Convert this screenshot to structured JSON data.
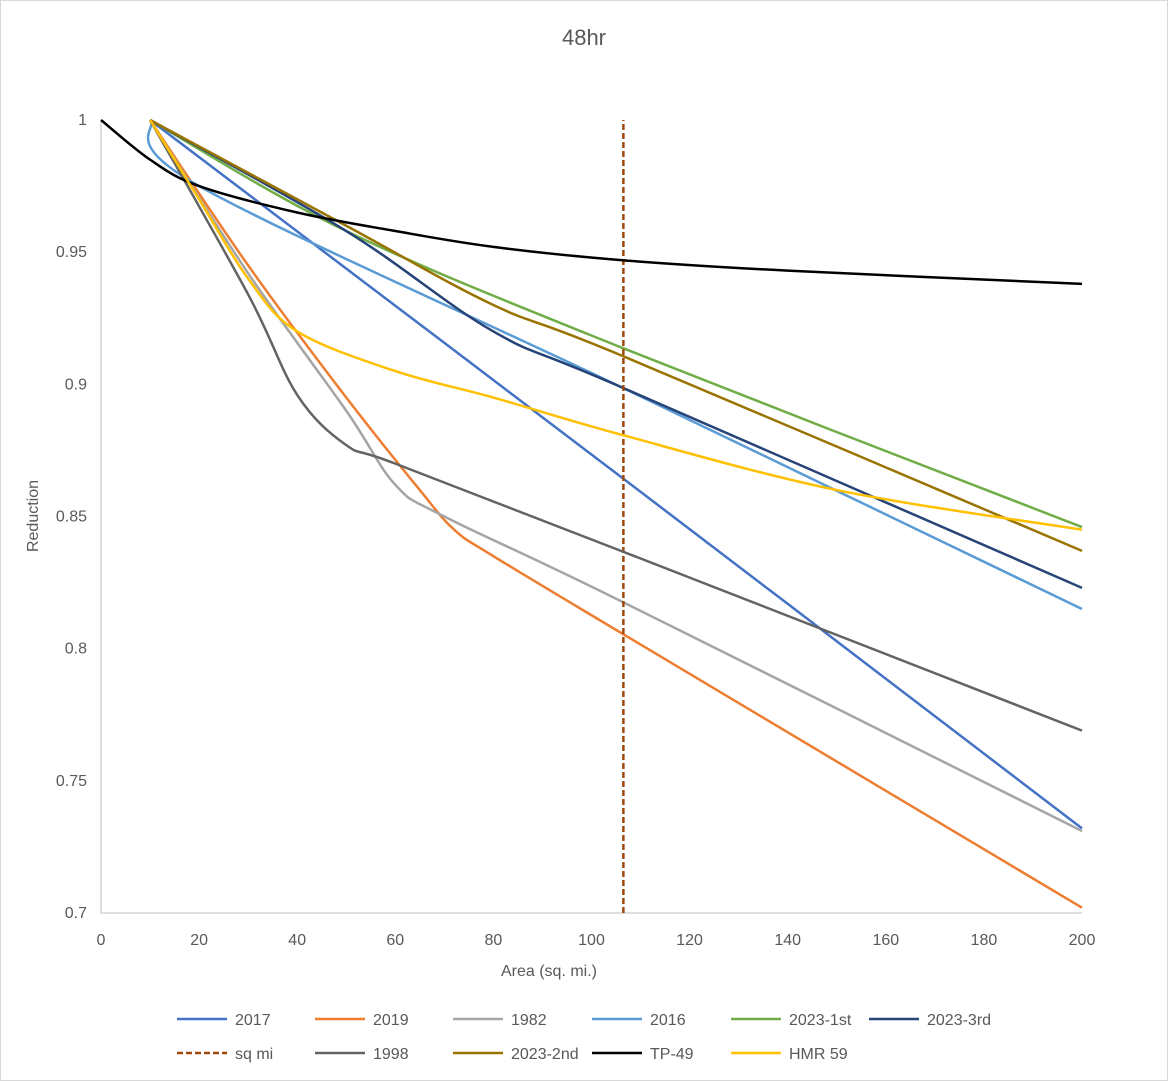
{
  "chart_data": {
    "type": "line",
    "title": "48hr",
    "xlabel": "Area (sq. mi.)",
    "ylabel": "Reduction",
    "xlim": [
      0,
      200
    ],
    "ylim": [
      0.7,
      1
    ],
    "xticks": [
      0,
      20,
      40,
      60,
      80,
      100,
      120,
      140,
      160,
      180,
      200
    ],
    "yticks": [
      0.7,
      0.75,
      0.8,
      0.85,
      0.9,
      0.95,
      1
    ],
    "grid": false,
    "legend": "bottom",
    "series": [
      {
        "name": "2017",
        "color": "#4472C4",
        "dash": false,
        "points": [
          [
            10,
            1
          ],
          [
            106,
            0.865
          ],
          [
            200,
            0.732
          ]
        ]
      },
      {
        "name": "2019",
        "color": "#ED7D31",
        "dash": false,
        "points": [
          [
            10,
            1
          ],
          [
            30,
            0.945
          ],
          [
            50,
            0.895
          ],
          [
            65,
            0.86
          ],
          [
            72,
            0.845
          ],
          [
            80,
            0.835
          ],
          [
            106,
            0.806
          ],
          [
            200,
            0.702
          ]
        ]
      },
      {
        "name": "1982",
        "color": "#A5A5A5",
        "dash": false,
        "points": [
          [
            10,
            1
          ],
          [
            30,
            0.942
          ],
          [
            50,
            0.89
          ],
          [
            60,
            0.862
          ],
          [
            70,
            0.85
          ],
          [
            106,
            0.818
          ],
          [
            200,
            0.731
          ]
        ]
      },
      {
        "name": "2016",
        "color": "#5B9BD5",
        "dash": false,
        "points": [
          [
            10,
            1
          ],
          [
            20,
            0.975
          ],
          [
            106,
            0.899
          ],
          [
            200,
            0.815
          ]
        ]
      },
      {
        "name": "2023-1st",
        "color": "#70AD47",
        "dash": false,
        "points": [
          [
            10,
            1
          ],
          [
            50,
            0.958
          ],
          [
            106,
            0.914
          ],
          [
            200,
            0.846
          ]
        ]
      },
      {
        "name": "2023-3rd",
        "color": "#264478",
        "dash": false,
        "points": [
          [
            10,
            1
          ],
          [
            50,
            0.958
          ],
          [
            80,
            0.92
          ],
          [
            106,
            0.899
          ],
          [
            200,
            0.823
          ]
        ]
      },
      {
        "name": "sq mi",
        "color": "#9E480E",
        "dash": true,
        "points": [
          [
            106.5,
            0.7
          ],
          [
            106.5,
            1
          ]
        ]
      },
      {
        "name": "1998",
        "color": "#636363",
        "dash": false,
        "points": [
          [
            10,
            1
          ],
          [
            30,
            0.934
          ],
          [
            40,
            0.896
          ],
          [
            50,
            0.877
          ],
          [
            60,
            0.87
          ],
          [
            106,
            0.837
          ],
          [
            200,
            0.769
          ]
        ]
      },
      {
        "name": "2023-2nd",
        "color": "#997300",
        "dash": false,
        "points": [
          [
            10,
            1
          ],
          [
            50,
            0.96
          ],
          [
            80,
            0.93
          ],
          [
            106,
            0.911
          ],
          [
            200,
            0.837
          ]
        ]
      },
      {
        "name": "TP-49",
        "color": "#000000",
        "dash": false,
        "points": [
          [
            0,
            1
          ],
          [
            10,
            0.985
          ],
          [
            20,
            0.975
          ],
          [
            40,
            0.965
          ],
          [
            60,
            0.958
          ],
          [
            80,
            0.952
          ],
          [
            106,
            0.947
          ],
          [
            140,
            0.943
          ],
          [
            200,
            0.938
          ]
        ]
      },
      {
        "name": "HMR 59",
        "color": "#FFC000",
        "dash": false,
        "points": [
          [
            10,
            1
          ],
          [
            20,
            0.97
          ],
          [
            30,
            0.94
          ],
          [
            40,
            0.92
          ],
          [
            60,
            0.905
          ],
          [
            80,
            0.895
          ],
          [
            106,
            0.881
          ],
          [
            150,
            0.86
          ],
          [
            200,
            0.845
          ]
        ]
      }
    ]
  }
}
